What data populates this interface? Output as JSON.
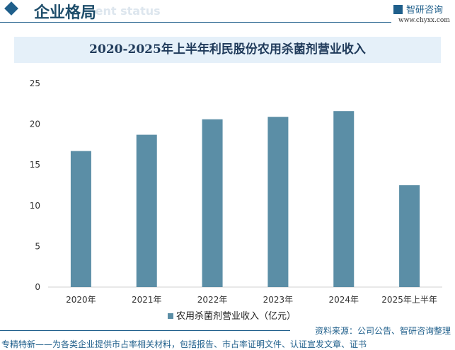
{
  "header": {
    "title": "企业格局",
    "ghost_text": "ment status",
    "logo": "智研咨询",
    "url": "www.chyxx.com"
  },
  "chart_data": {
    "type": "bar",
    "title": "2020-2025年上半年利民股份农用杀菌剂营业收入",
    "categories": [
      "2020年",
      "2021年",
      "2022年",
      "2023年",
      "2024年",
      "2025年上半年"
    ],
    "series": [
      {
        "name": "农用杀菌剂营业收入（亿元）",
        "values": [
          16.7,
          18.7,
          20.6,
          20.9,
          21.6,
          12.5
        ],
        "color": "#5b8ea6"
      }
    ],
    "ylim": [
      0,
      25
    ],
    "yticks": [
      0,
      5,
      10,
      15,
      20,
      25
    ],
    "legend": "bottom"
  },
  "source": "资料来源：公司公告、智研咨询整理",
  "footer": "专精特新——为各类企业提供市占率相关材料，包括报告、市占率证明文件、认证宣发文章、证书"
}
